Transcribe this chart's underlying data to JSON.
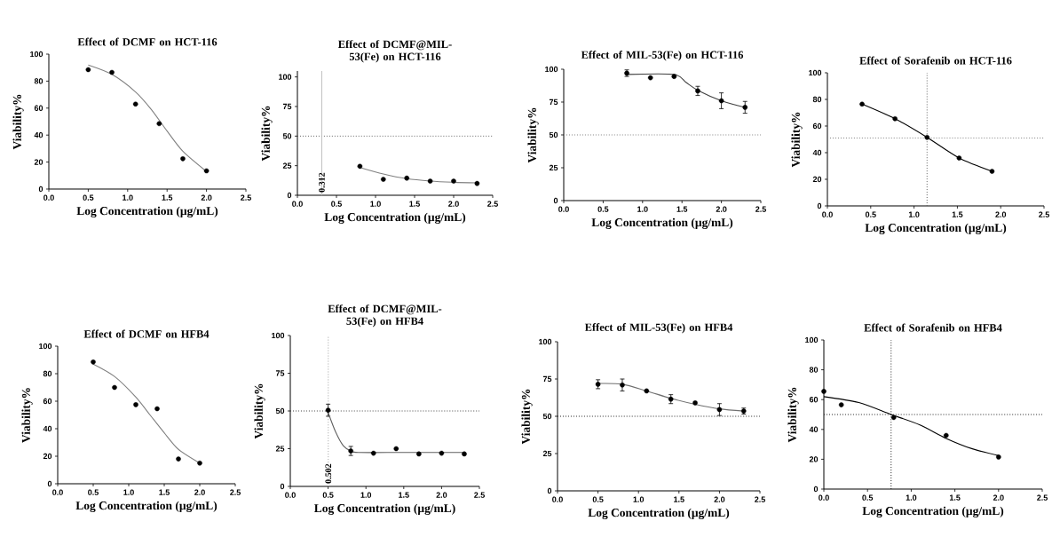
{
  "chart_data": [
    {
      "type": "scatter",
      "title": "Effect of DCMF on HCT-116",
      "xlabel": "Log Concentration (µg/mL)",
      "ylabel": "Viability%",
      "xlim": [
        0,
        2.5
      ],
      "ylim": [
        0,
        100
      ],
      "xticks": [
        {
          "value": 0,
          "label": "0.0"
        },
        {
          "value": 0.5,
          "label": "0.5"
        },
        {
          "value": 1,
          "label": "1.0"
        },
        {
          "value": 1.5,
          "label": "1.5"
        },
        {
          "value": 2,
          "label": "2.0"
        },
        {
          "value": 2.5,
          "label": "2.5"
        }
      ],
      "yticks": [
        0,
        20,
        40,
        60,
        80,
        100
      ],
      "series": [
        {
          "marker": "circle",
          "color": "#000000",
          "x": [
            0.5,
            0.8,
            1.1,
            1.4,
            1.7,
            2.0
          ],
          "values": [
            88.5,
            86.5,
            63,
            48.5,
            22.5,
            13.5
          ]
        },
        {
          "type": "line",
          "marker": "none",
          "color": "#808080",
          "x": [
            0.5,
            0.8,
            1.1,
            1.3,
            1.5,
            1.7,
            2.0
          ],
          "values": [
            92,
            85,
            72,
            59,
            43,
            28,
            13
          ]
        }
      ]
    },
    {
      "type": "scatter",
      "title": "Effect of DCMF@MIL-53(Fe)  on HCT-116",
      "xlabel": "Log Concentration (µg/mL)",
      "ylabel": "Viability%",
      "xlim": [
        0,
        2.5
      ],
      "ylim": [
        0,
        105
      ],
      "xticks": [
        {
          "value": 0,
          "label": "0.0"
        },
        {
          "value": 0.5,
          "label": "0.5"
        },
        {
          "value": 1,
          "label": "1.0"
        },
        {
          "value": 1.5,
          "label": "1.5"
        },
        {
          "value": 2,
          "label": "2.0"
        },
        {
          "value": 2.5,
          "label": "2.5"
        }
      ],
      "yticks": [
        0,
        25,
        50,
        75,
        100
      ],
      "series": [
        {
          "marker": "circle",
          "color": "#000000",
          "x": [
            0.8,
            1.1,
            1.4,
            1.7,
            2.0,
            2.3
          ],
          "values": [
            24.5,
            13.5,
            14.5,
            12,
            12,
            10
          ]
        },
        {
          "type": "line",
          "marker": "none",
          "color": "#808080",
          "x": [
            0.8,
            1.1,
            1.4,
            1.7,
            2.0,
            2.3
          ],
          "values": [
            23.5,
            18,
            14,
            12,
            11,
            10.5
          ]
        }
      ],
      "ref_lines": [
        {
          "axis": "y",
          "value": 50,
          "color": "#606060",
          "line_style": "dotted"
        },
        {
          "axis": "x",
          "value": 0.312,
          "label": "0.312",
          "color": "#c0c0c0",
          "line_style": "solid"
        }
      ]
    },
    {
      "type": "scatter",
      "title": "Effect of MIL-53(Fe) on HCT-116",
      "xlabel": "Log Concentration (µg/mL)",
      "ylabel": "Viability%",
      "xlim": [
        0,
        2.5
      ],
      "ylim": [
        0,
        100
      ],
      "xticks": [
        {
          "value": 0,
          "label": "0.0"
        },
        {
          "value": 0.5,
          "label": "0.5"
        },
        {
          "value": 1,
          "label": "1.0"
        },
        {
          "value": 1.5,
          "label": "1.5"
        },
        {
          "value": 2,
          "label": "2.0"
        },
        {
          "value": 2.5,
          "label": "2.5"
        }
      ],
      "yticks": [
        0,
        25,
        50,
        75,
        100
      ],
      "series": [
        {
          "marker": "circle",
          "color": "#000000",
          "x": [
            0.8,
            1.1,
            1.4,
            1.7,
            2.0,
            2.3
          ],
          "values": [
            97,
            93.5,
            94.5,
            83.5,
            76,
            71
          ],
          "errors": [
            2.5,
            null,
            null,
            3.5,
            6,
            4.5
          ]
        },
        {
          "type": "line",
          "marker": "none",
          "color": "#404040",
          "x": [
            0.8,
            1.4,
            1.55,
            1.7,
            2.0,
            2.3
          ],
          "values": [
            96,
            96,
            90,
            84,
            76,
            71
          ]
        }
      ],
      "ref_lines": [
        {
          "axis": "y",
          "value": 50,
          "color": "#808080",
          "line_style": "dotted"
        }
      ]
    },
    {
      "type": "scatter",
      "title": "Effect of Sorafenib on HCT-116",
      "xlabel": "Log Concentration (µg/mL)",
      "ylabel": "Viability%",
      "xlim": [
        0,
        2.5
      ],
      "ylim": [
        0,
        100
      ],
      "xticks": [
        {
          "value": 0,
          "label": "0.0"
        },
        {
          "value": 0.5,
          "label": "0.5"
        },
        {
          "value": 1,
          "label": "1.0"
        },
        {
          "value": 1.5,
          "label": "1.5"
        },
        {
          "value": 2,
          "label": "2.0"
        },
        {
          "value": 2.5,
          "label": "2.5"
        }
      ],
      "yticks": [
        0,
        20,
        40,
        60,
        80,
        100
      ],
      "series": [
        {
          "marker": "circle",
          "color": "#000000",
          "x": [
            0.4,
            0.78,
            1.15,
            1.52,
            1.9
          ],
          "values": [
            76.5,
            65.5,
            51.5,
            36,
            26
          ]
        },
        {
          "type": "line",
          "marker": "none",
          "color": "#000000",
          "x": [
            0.4,
            0.78,
            1.15,
            1.52,
            1.9
          ],
          "values": [
            76.5,
            65.5,
            51.5,
            36,
            26
          ]
        }
      ],
      "ref_lines": [
        {
          "axis": "y",
          "value": 51,
          "color": "#808080",
          "line_style": "dotted"
        },
        {
          "axis": "x",
          "value": 1.15,
          "color": "#606060",
          "line_style": "dotted"
        }
      ]
    },
    {
      "type": "scatter",
      "title": "Effect of DCMF on HFB4",
      "xlabel": "Log Concentration (µg/mL)",
      "ylabel": "Viability%",
      "xlim": [
        0,
        2.5
      ],
      "ylim": [
        0,
        100
      ],
      "xticks": [
        {
          "value": 0,
          "label": "0.0"
        },
        {
          "value": 0.5,
          "label": "0.5"
        },
        {
          "value": 1,
          "label": "1.0"
        },
        {
          "value": 1.5,
          "label": "1.5"
        },
        {
          "value": 2,
          "label": "2.0"
        },
        {
          "value": 2.5,
          "label": "2.5"
        }
      ],
      "yticks": [
        0,
        20,
        40,
        60,
        80,
        100
      ],
      "series": [
        {
          "marker": "circle",
          "color": "#000000",
          "x": [
            0.5,
            0.8,
            1.1,
            1.4,
            1.7,
            2.0
          ],
          "values": [
            88.5,
            70,
            57.5,
            54.5,
            18,
            15
          ]
        },
        {
          "type": "line",
          "marker": "none",
          "color": "#808080",
          "x": [
            0.5,
            0.8,
            1.1,
            1.3,
            1.5,
            1.7,
            2.0
          ],
          "values": [
            87,
            78,
            63,
            50,
            37,
            25,
            15
          ]
        }
      ]
    },
    {
      "type": "scatter",
      "title": "Effect of DCMF@MIL-53(Fe)  on HFB4",
      "xlabel": "Log Concentration (µg/mL)",
      "ylabel": "Viability%",
      "xlim": [
        0,
        2.5
      ],
      "ylim": [
        0,
        100
      ],
      "xticks": [
        {
          "value": 0,
          "label": "0.0"
        },
        {
          "value": 0.5,
          "label": "0.5"
        },
        {
          "value": 1,
          "label": "1.0"
        },
        {
          "value": 1.5,
          "label": "1.5"
        },
        {
          "value": 2,
          "label": "2.0"
        },
        {
          "value": 2.5,
          "label": "2.5"
        }
      ],
      "yticks": [
        0,
        25,
        50,
        75,
        100
      ],
      "series": [
        {
          "marker": "circle",
          "color": "#000000",
          "x": [
            0.5,
            0.8,
            1.1,
            1.4,
            1.7,
            2.0,
            2.3
          ],
          "values": [
            50.5,
            23.5,
            22,
            25,
            21.5,
            22,
            21.5
          ],
          "errors": [
            4,
            3,
            null,
            null,
            null,
            null,
            null
          ]
        },
        {
          "type": "line",
          "marker": "none",
          "color": "#606060",
          "x": [
            0.5,
            0.6,
            0.7,
            0.8,
            0.9,
            1.5,
            2.3
          ],
          "values": [
            49,
            36,
            27,
            23.5,
            22.5,
            22.5,
            22.5
          ]
        }
      ],
      "ref_lines": [
        {
          "axis": "y",
          "value": 50,
          "color": "#404040",
          "line_style": "dotted"
        },
        {
          "axis": "x",
          "value": 0.502,
          "label": "0.502",
          "color": "#a0a0a0",
          "line_style": "dotted"
        }
      ]
    },
    {
      "type": "scatter",
      "title": "Effect of MIL-53(Fe) on HFB4",
      "xlabel": "Log Concentration (µg/mL)",
      "ylabel": "Viability%",
      "xlim": [
        0,
        2.5
      ],
      "ylim": [
        0,
        100
      ],
      "xticks": [
        {
          "value": 0,
          "label": "0.0"
        },
        {
          "value": 0.5,
          "label": "0.5"
        },
        {
          "value": 1,
          "label": "1.0"
        },
        {
          "value": 1.5,
          "label": "1.5"
        },
        {
          "value": 2,
          "label": "2.0"
        },
        {
          "value": 2.5,
          "label": "2.5"
        }
      ],
      "yticks": [
        0,
        25,
        50,
        75,
        100
      ],
      "series": [
        {
          "marker": "circle",
          "color": "#000000",
          "x": [
            0.5,
            0.8,
            1.1,
            1.4,
            1.7,
            2.0,
            2.3
          ],
          "values": [
            71.5,
            71,
            67,
            61.5,
            59,
            54.5,
            53.5
          ],
          "errors": [
            3,
            4,
            null,
            3,
            null,
            4,
            2
          ]
        },
        {
          "type": "line",
          "marker": "none",
          "color": "#707070",
          "x": [
            0.5,
            0.8,
            1.1,
            1.4,
            1.7,
            2.0,
            2.3
          ],
          "values": [
            72,
            71.5,
            67,
            62,
            58,
            55,
            53.5
          ]
        }
      ],
      "ref_lines": [
        {
          "axis": "y",
          "value": 50,
          "color": "#202020",
          "line_style": "dotted"
        }
      ]
    },
    {
      "type": "scatter",
      "title": "Effect of Sorafenib on HFB4",
      "xlabel": "Log Concentration (µg/mL)",
      "ylabel": "Viability%",
      "xlim": [
        0,
        2.5
      ],
      "ylim": [
        0,
        100
      ],
      "xticks": [
        {
          "value": 0,
          "label": "0.0"
        },
        {
          "value": 0.5,
          "label": "0.5"
        },
        {
          "value": 1,
          "label": "1.0"
        },
        {
          "value": 1.5,
          "label": "1.5"
        },
        {
          "value": 2,
          "label": "2.0"
        },
        {
          "value": 2.5,
          "label": "2.5"
        }
      ],
      "yticks": [
        0,
        20,
        40,
        60,
        80,
        100
      ],
      "series": [
        {
          "marker": "circle",
          "color": "#000000",
          "x": [
            0.0,
            0.2,
            0.8,
            1.4,
            2.0
          ],
          "values": [
            65.5,
            56.5,
            48,
            36,
            21.5
          ]
        },
        {
          "type": "line",
          "marker": "none",
          "color": "#000000",
          "x": [
            0.0,
            0.4,
            0.77,
            1.1,
            1.4,
            1.7,
            2.0
          ],
          "values": [
            62,
            58,
            50,
            43,
            34,
            27,
            22.5
          ]
        }
      ],
      "ref_lines": [
        {
          "axis": "y",
          "value": 50,
          "color": "#202020",
          "line_style": "dotted"
        },
        {
          "axis": "x",
          "value": 0.77,
          "color": "#202020",
          "line_style": "dotted"
        }
      ]
    }
  ]
}
